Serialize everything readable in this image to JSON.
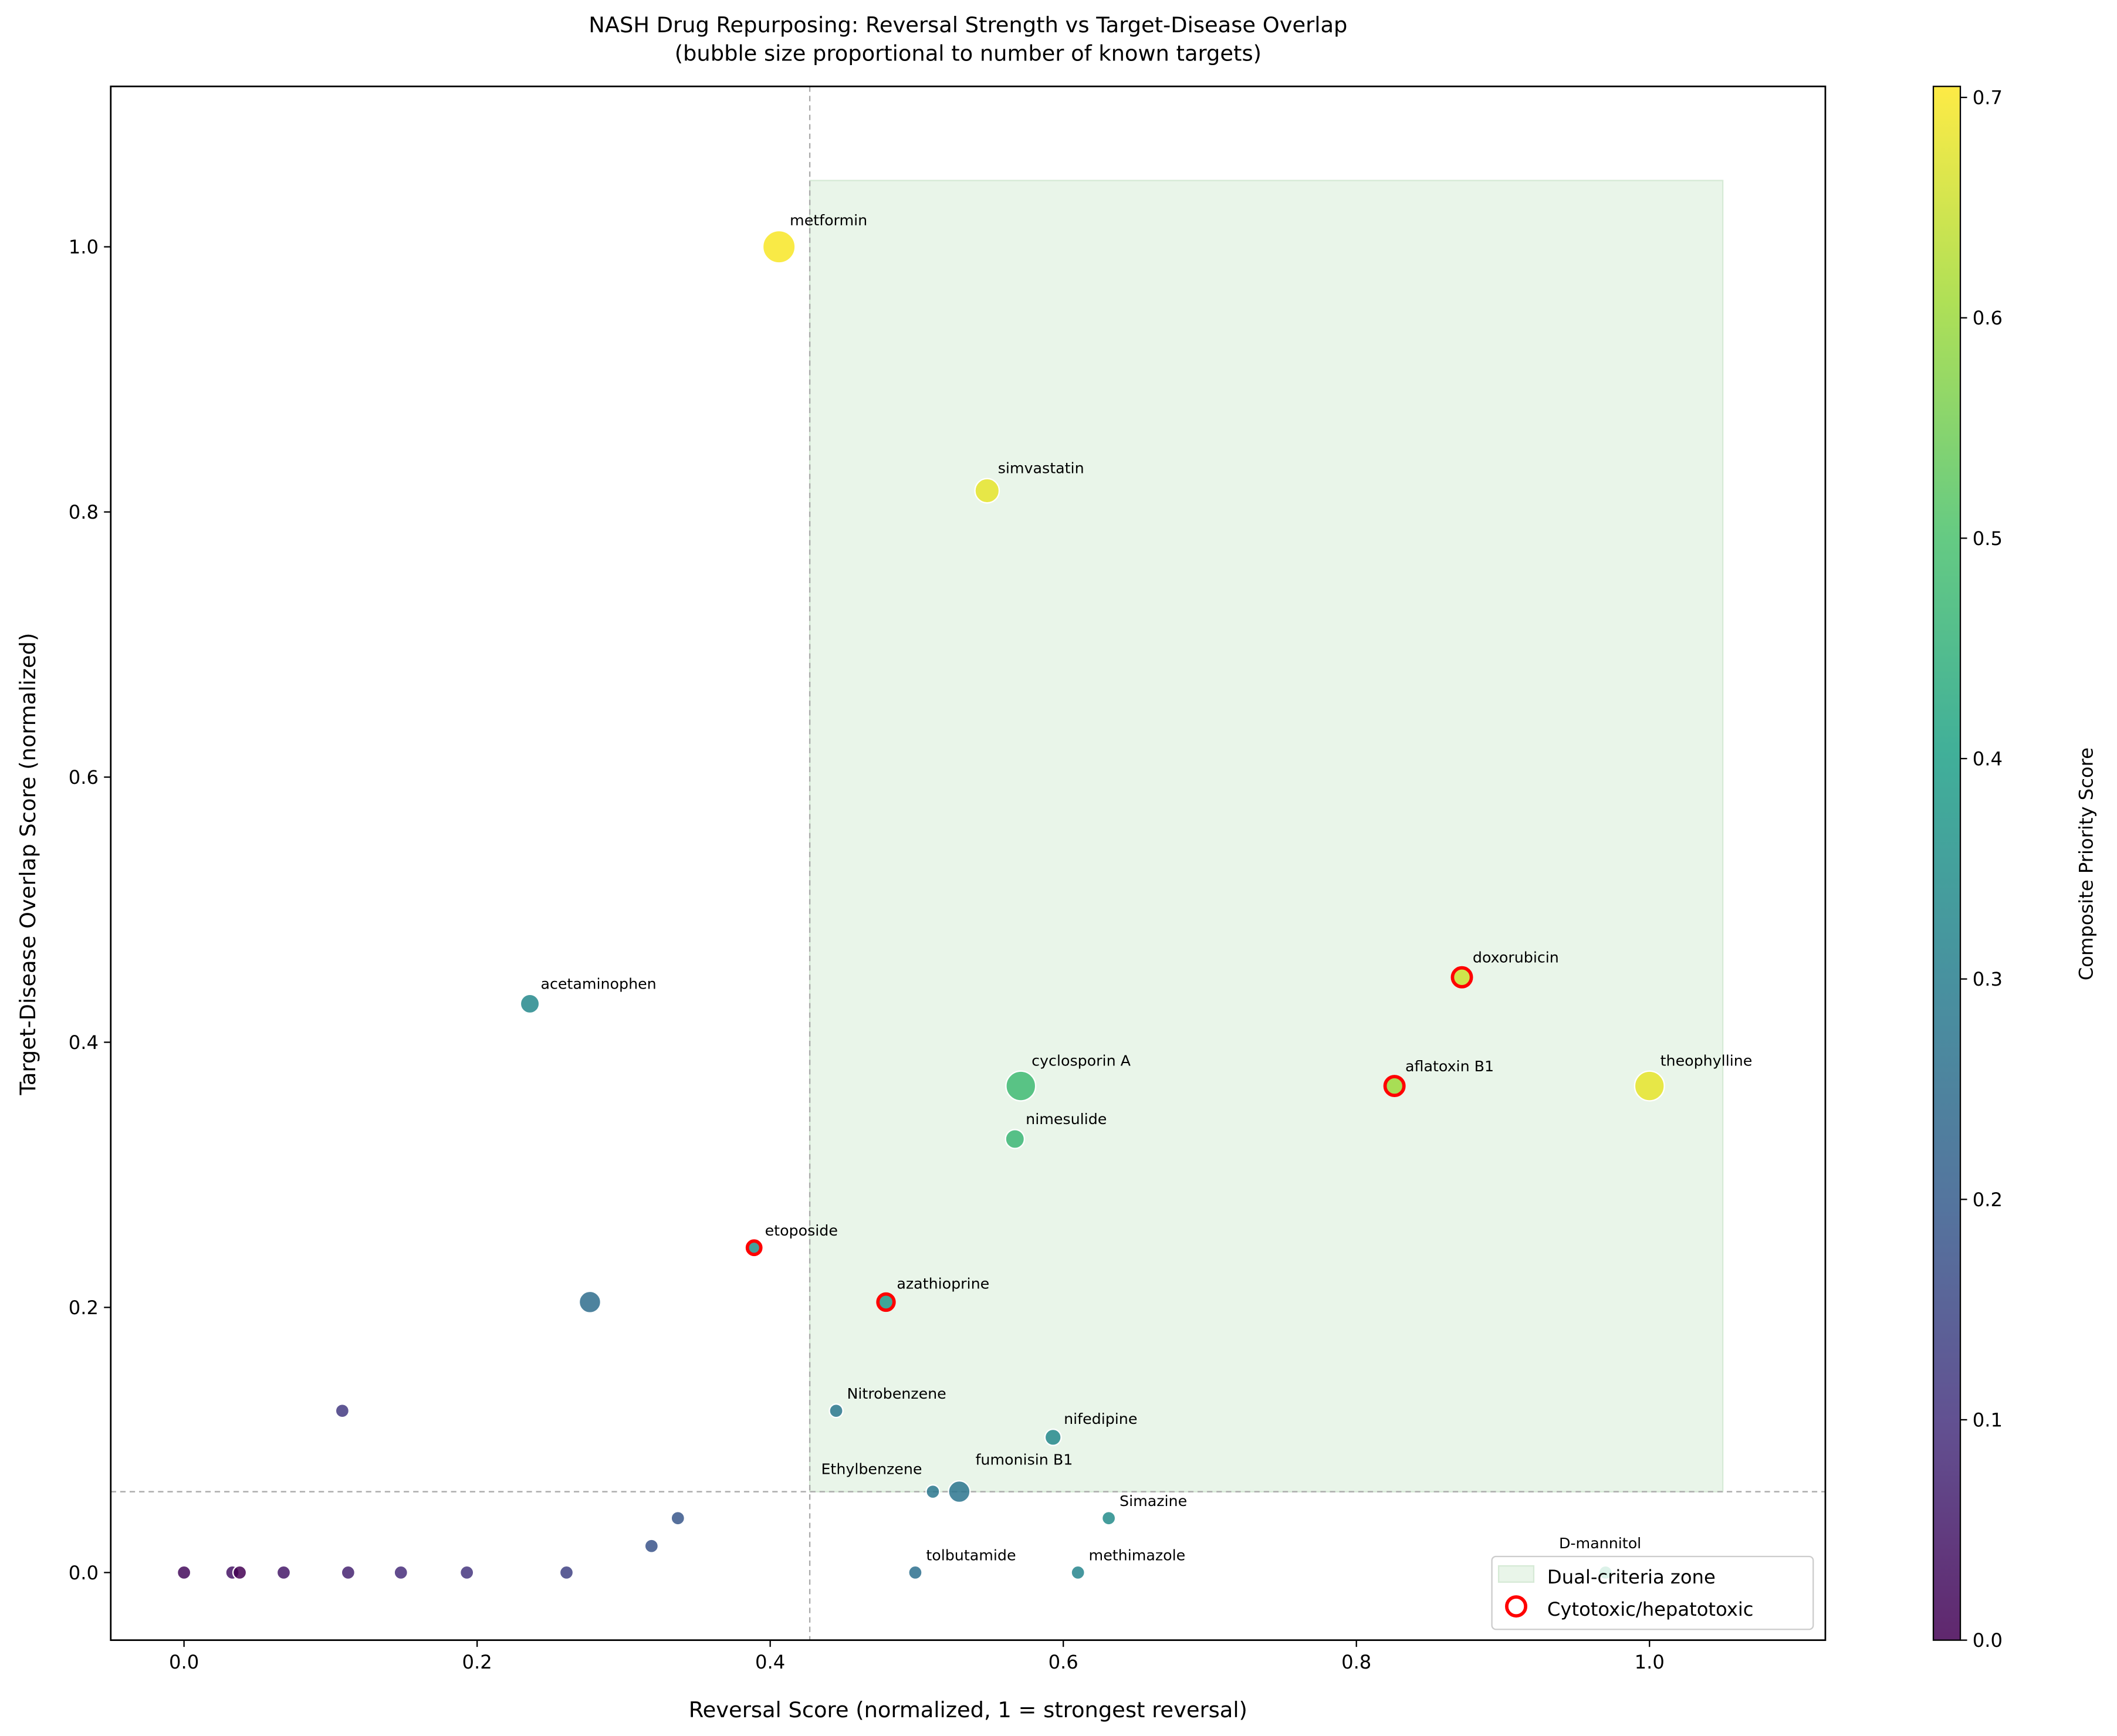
{
  "chart_data": {
    "type": "scatter",
    "title": "NASH Drug Repurposing: Reversal Strength vs Target-Disease Overlap",
    "subtitle": "(bubble size proportional to number of known targets)",
    "xlabel": "Reversal Score (normalized, 1 = strongest reversal)",
    "ylabel": "Target-Disease Overlap Score (normalized)",
    "xlim": [
      -0.05,
      1.12
    ],
    "ylim": [
      -0.051,
      1.121
    ],
    "xticks": [
      "0.0",
      "0.2",
      "0.4",
      "0.6",
      "0.8",
      "1.0"
    ],
    "yticks": [
      "0.0",
      "0.2",
      "0.4",
      "0.6",
      "0.8",
      "1.0"
    ],
    "colorbar": {
      "label": "Composite Priority Score",
      "range": [
        0,
        0.705
      ],
      "ticks": [
        "0.0",
        "0.1",
        "0.2",
        "0.3",
        "0.4",
        "0.5",
        "0.6",
        "0.7"
      ]
    },
    "thresholds": {
      "reversal": 0.427,
      "overlap": 0.061
    },
    "zone": {
      "x": [
        0.427,
        1.05
      ],
      "y": [
        0.061,
        1.05
      ]
    },
    "legend": {
      "placement": "lower-right",
      "entries": [
        "Dual-criteria zone",
        "Cytotoxic/hepatotoxic"
      ]
    },
    "points": [
      {
        "name": "metformin",
        "x": 0.406,
        "y": 1.0,
        "score": 0.7,
        "targets": 12,
        "cytotoxic": false
      },
      {
        "name": "simvastatin",
        "x": 0.548,
        "y": 0.816,
        "score": 0.68,
        "targets": 9,
        "cytotoxic": false
      },
      {
        "name": "acetaminophen",
        "x": 0.236,
        "y": 0.429,
        "score": 0.33,
        "targets": 7,
        "cytotoxic": false
      },
      {
        "name": "doxorubicin",
        "x": 0.872,
        "y": 0.449,
        "score": 0.65,
        "targets": 7,
        "cytotoxic": true
      },
      {
        "name": "cyclosporin A",
        "x": 0.571,
        "y": 0.367,
        "score": 0.48,
        "targets": 11,
        "cytotoxic": false
      },
      {
        "name": "aflatoxin B1",
        "x": 0.826,
        "y": 0.367,
        "score": 0.6,
        "targets": 7,
        "cytotoxic": true
      },
      {
        "name": "theophylline",
        "x": 1.0,
        "y": 0.367,
        "score": 0.68,
        "targets": 11,
        "cytotoxic": false
      },
      {
        "name": "nimesulide",
        "x": 0.567,
        "y": 0.327,
        "score": 0.47,
        "targets": 7,
        "cytotoxic": false
      },
      {
        "name": "etoposide",
        "x": 0.389,
        "y": 0.245,
        "score": 0.35,
        "targets": 5,
        "cytotoxic": true
      },
      {
        "name": "",
        "x": 0.277,
        "y": 0.204,
        "score": 0.25,
        "targets": 8,
        "cytotoxic": false
      },
      {
        "name": "azathioprine",
        "x": 0.479,
        "y": 0.204,
        "score": 0.38,
        "targets": 6,
        "cytotoxic": true
      },
      {
        "name": "Nitrobenzene",
        "x": 0.445,
        "y": 0.122,
        "score": 0.28,
        "targets": 5,
        "cytotoxic": false
      },
      {
        "name": "nifedipine",
        "x": 0.593,
        "y": 0.102,
        "score": 0.33,
        "targets": 6,
        "cytotoxic": false
      },
      {
        "name": "",
        "x": 0.108,
        "y": 0.122,
        "score": 0.12,
        "targets": 5,
        "cytotoxic": false
      },
      {
        "name": "Ethylbenzene",
        "x": 0.511,
        "y": 0.061,
        "score": 0.28,
        "targets": 5,
        "cytotoxic": false
      },
      {
        "name": "fumonisin B1",
        "x": 0.529,
        "y": 0.061,
        "score": 0.27,
        "targets": 8,
        "cytotoxic": false
      },
      {
        "name": "Simazine",
        "x": 0.631,
        "y": 0.041,
        "score": 0.34,
        "targets": 5,
        "cytotoxic": false
      },
      {
        "name": "tolbutamide",
        "x": 0.499,
        "y": 0.0,
        "score": 0.26,
        "targets": 5,
        "cytotoxic": false
      },
      {
        "name": "methimazole",
        "x": 0.61,
        "y": 0.0,
        "score": 0.32,
        "targets": 5,
        "cytotoxic": false
      },
      {
        "name": "D-mannitol",
        "x": 0.97,
        "y": 0.0,
        "score": 0.45,
        "targets": 5,
        "cytotoxic": false
      },
      {
        "name": "",
        "x": 0.337,
        "y": 0.041,
        "score": 0.19,
        "targets": 5,
        "cytotoxic": false
      },
      {
        "name": "",
        "x": 0.319,
        "y": 0.02,
        "score": 0.18,
        "targets": 5,
        "cytotoxic": false
      },
      {
        "name": "",
        "x": 0.0,
        "y": 0.0,
        "score": 0.02,
        "targets": 5,
        "cytotoxic": false
      },
      {
        "name": "",
        "x": 0.033,
        "y": 0.0,
        "score": 0.04,
        "targets": 5,
        "cytotoxic": false
      },
      {
        "name": "",
        "x": 0.038,
        "y": 0.0,
        "score": 0.0,
        "targets": 5,
        "cytotoxic": false
      },
      {
        "name": "",
        "x": 0.068,
        "y": 0.0,
        "score": 0.05,
        "targets": 5,
        "cytotoxic": false
      },
      {
        "name": "",
        "x": 0.112,
        "y": 0.0,
        "score": 0.07,
        "targets": 5,
        "cytotoxic": false
      },
      {
        "name": "",
        "x": 0.148,
        "y": 0.0,
        "score": 0.09,
        "targets": 5,
        "cytotoxic": false
      },
      {
        "name": "",
        "x": 0.193,
        "y": 0.0,
        "score": 0.11,
        "targets": 5,
        "cytotoxic": false
      },
      {
        "name": "",
        "x": 0.261,
        "y": 0.0,
        "score": 0.14,
        "targets": 5,
        "cytotoxic": false
      }
    ],
    "colors": {
      "zone": "#e9f5e9",
      "cytotoxic_ring": "#ff0000",
      "threshold_line": "#aaaaaa"
    }
  }
}
